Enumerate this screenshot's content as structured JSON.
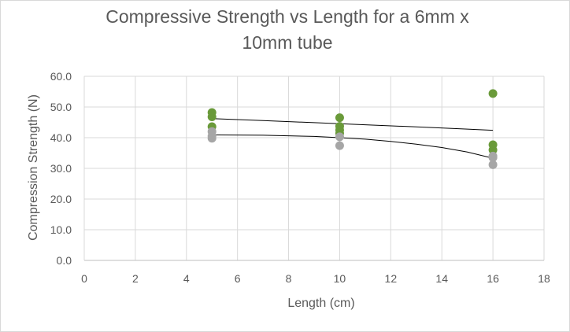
{
  "chart_data": {
    "type": "scatter",
    "title_line1": "Compressive Strength vs Length for a 6mm x",
    "title_line2": "10mm tube",
    "xlabel": "Length (cm)",
    "ylabel": "Compression Strength (N)",
    "xlim": [
      0,
      18
    ],
    "ylim": [
      0,
      60
    ],
    "x_ticks": [
      "0",
      "2",
      "4",
      "6",
      "8",
      "10",
      "12",
      "14",
      "16",
      "18"
    ],
    "y_ticks": [
      "0.0",
      "10.0",
      "20.0",
      "30.0",
      "40.0",
      "50.0",
      "60.0"
    ],
    "grid": true,
    "legend": "none",
    "series": [
      {
        "color": "#6a9a3a",
        "points": [
          [
            5,
            48.2
          ],
          [
            5,
            46.8
          ],
          [
            5,
            43.6
          ],
          [
            10,
            46.5
          ],
          [
            10,
            43.7
          ],
          [
            10,
            42.5
          ],
          [
            10,
            41.4
          ],
          [
            16,
            54.4
          ],
          [
            16,
            37.7
          ],
          [
            16,
            36.0
          ]
        ],
        "trendline": [
          [
            5,
            46.2
          ],
          [
            7,
            45.6
          ],
          [
            9,
            44.9
          ],
          [
            11,
            44.2
          ],
          [
            13,
            43.5
          ],
          [
            15,
            42.8
          ],
          [
            16,
            42.4
          ]
        ]
      },
      {
        "color": "#a6a6a6",
        "points": [
          [
            5,
            42.0
          ],
          [
            5,
            40.5
          ],
          [
            5,
            39.8
          ],
          [
            10,
            40.3
          ],
          [
            10,
            37.4
          ],
          [
            16,
            34.0
          ],
          [
            16,
            33.5
          ],
          [
            16,
            31.2
          ]
        ],
        "trendline": [
          [
            5,
            40.9
          ],
          [
            7,
            40.8
          ],
          [
            9,
            40.4
          ],
          [
            10,
            40.0
          ],
          [
            11,
            39.5
          ],
          [
            12,
            38.8
          ],
          [
            13,
            37.9
          ],
          [
            14,
            36.8
          ],
          [
            15,
            35.3
          ],
          [
            16,
            33.3
          ]
        ]
      }
    ],
    "trendline_color": "#000000"
  }
}
